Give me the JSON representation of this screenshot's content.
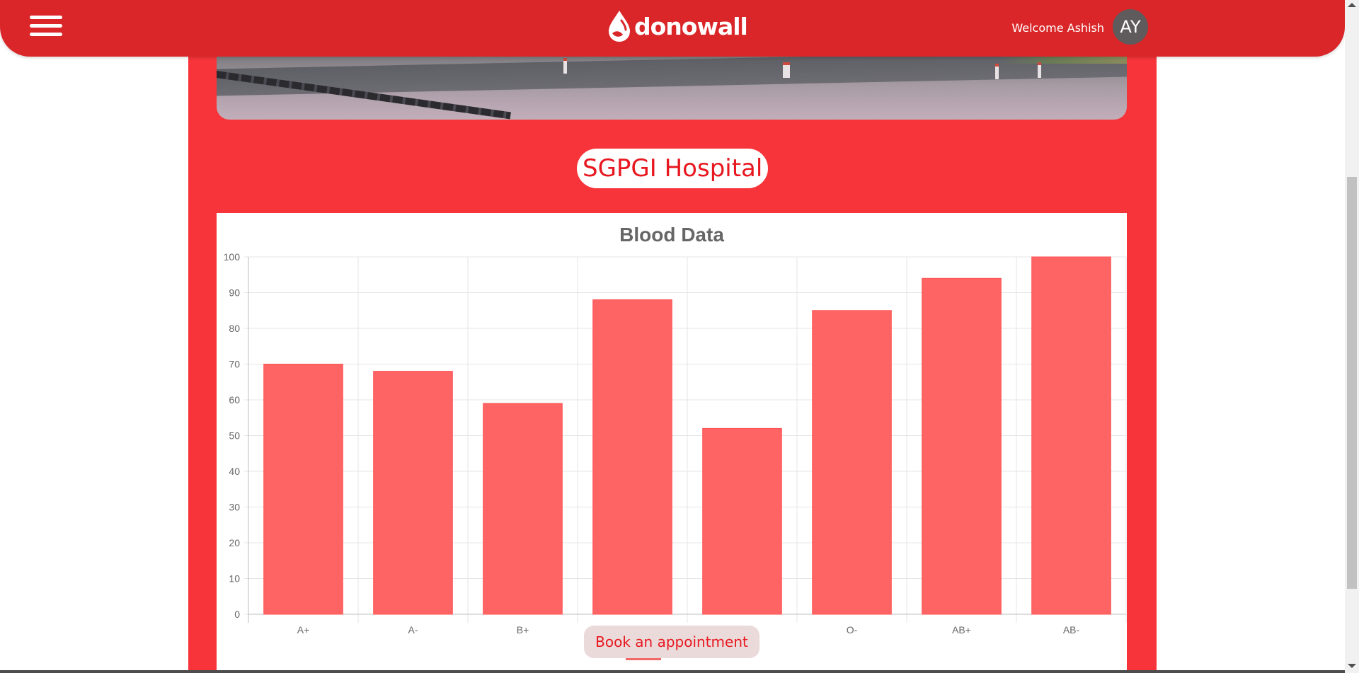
{
  "header": {
    "brand": "donowall",
    "welcome_text": "Welcome Ashish",
    "avatar_initials": "AY"
  },
  "hospital": {
    "name": "SGPGI Hospital"
  },
  "actions": {
    "book_label": "Book an appointment"
  },
  "colors": {
    "header": "#da2628",
    "content_background": "#f7343a",
    "bar_fill": "#ff6464",
    "bar_stroke": "#ff5353",
    "accent_text": "#e8171f"
  },
  "chart_data": {
    "type": "bar",
    "title": "Blood Data",
    "categories": [
      "A+",
      "A-",
      "B+",
      "",
      "",
      "O-",
      "AB+",
      "AB-"
    ],
    "series": [
      {
        "values": [
          70,
          68,
          59,
          88,
          52,
          85,
          94,
          100
        ]
      }
    ],
    "ylim": [
      0,
      100
    ],
    "yticks": [
      0,
      10,
      20,
      30,
      40,
      50,
      60,
      70,
      80,
      90,
      100
    ],
    "grid": true,
    "legend": "none"
  }
}
